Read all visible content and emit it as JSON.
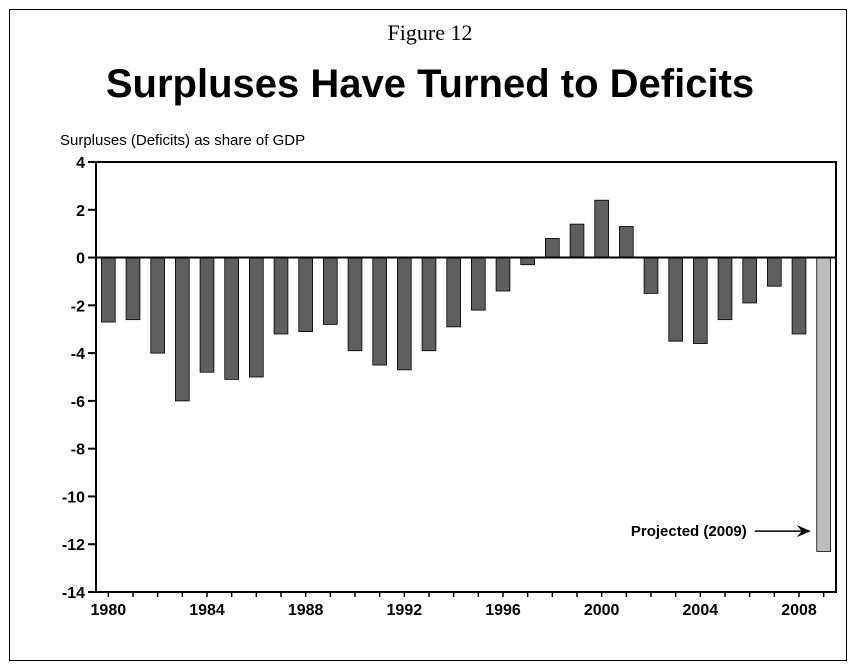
{
  "figure_label": "Figure 12",
  "chart_data": {
    "type": "bar",
    "title": "Surpluses Have Turned to Deficits",
    "ylabel": "Surpluses (Deficits) as share of GDP",
    "xlabel": "",
    "ylim": [
      -14,
      4
    ],
    "yticks": [
      4,
      2,
      0,
      -2,
      -4,
      -6,
      -8,
      -10,
      -12,
      -14
    ],
    "x": [
      1980,
      1981,
      1982,
      1983,
      1984,
      1985,
      1986,
      1987,
      1988,
      1989,
      1990,
      1991,
      1992,
      1993,
      1994,
      1995,
      1996,
      1997,
      1998,
      1999,
      2000,
      2001,
      2002,
      2003,
      2004,
      2005,
      2006,
      2007,
      2008,
      2009
    ],
    "xtick_labels": [
      "1980",
      "1984",
      "1988",
      "1992",
      "1996",
      "2000",
      "2004",
      "2008"
    ],
    "values": [
      -2.7,
      -2.6,
      -4.0,
      -6.0,
      -4.8,
      -5.1,
      -5.0,
      -3.2,
      -3.1,
      -2.8,
      -3.9,
      -4.5,
      -4.7,
      -3.9,
      -2.9,
      -2.2,
      -1.4,
      -0.3,
      0.8,
      1.4,
      2.4,
      1.3,
      -1.5,
      -3.5,
      -3.6,
      -2.6,
      -1.9,
      -1.2,
      -3.2,
      -12.3
    ],
    "projected_years": [
      2009
    ],
    "annotation": {
      "text": "Projected (2009)",
      "target_year": 2009
    },
    "colors": {
      "actual": "#5e5e5e",
      "projected": "#bdbdbd",
      "stroke": "#000000"
    },
    "grid": false,
    "legend": "none"
  }
}
